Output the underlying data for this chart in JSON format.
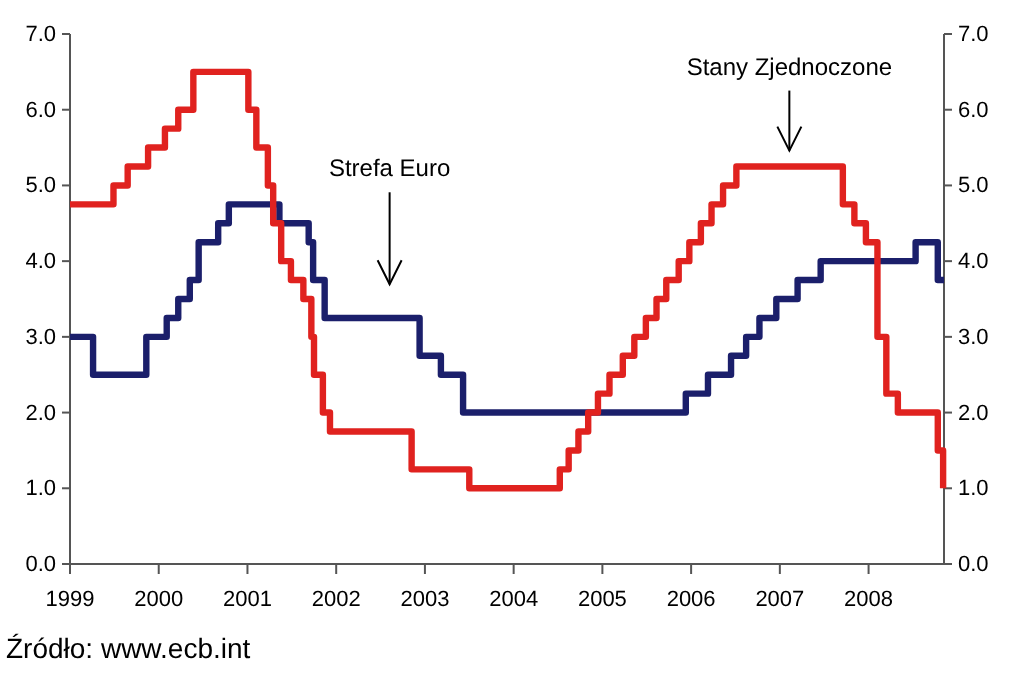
{
  "chart_data": {
    "type": "step",
    "xlim": [
      1999,
      2008.85
    ],
    "xticks": [
      1999,
      2000,
      2001,
      2002,
      2003,
      2004,
      2005,
      2006,
      2007,
      2008
    ],
    "ylim": [
      0,
      7
    ],
    "yticks": [
      {
        "value": 0,
        "label": "0.0"
      },
      {
        "value": 1,
        "label": "1.0"
      },
      {
        "value": 2,
        "label": "2.0"
      },
      {
        "value": 3,
        "label": "3.0"
      },
      {
        "value": 4,
        "label": "4.0"
      },
      {
        "value": 5,
        "label": "5.0"
      },
      {
        "value": 6,
        "label": "6.0"
      },
      {
        "value": 7,
        "label": "7.0"
      }
    ],
    "y2lim": [
      0,
      7
    ],
    "y2ticks": [
      {
        "value": 0,
        "label": "0.0"
      },
      {
        "value": 1,
        "label": "1.0"
      },
      {
        "value": 2,
        "label": "2.0"
      },
      {
        "value": 3,
        "label": "3.0"
      },
      {
        "value": 4,
        "label": "4.0"
      },
      {
        "value": 5,
        "label": "5.0"
      },
      {
        "value": 6,
        "label": "6.0"
      },
      {
        "value": 7,
        "label": "7.0"
      }
    ],
    "grid": false,
    "marker": "none",
    "line_style": "solid",
    "series": [
      {
        "color": "#1b1f6b",
        "x": [
          1999,
          1999.26,
          1999.86,
          2000.09,
          2000.22,
          2000.35,
          2000.45,
          2000.67,
          2000.79,
          2001.36,
          2001.69,
          2001.74,
          2001.87,
          2002.94,
          2003.18,
          2003.43,
          2005.94,
          2006.19,
          2006.45,
          2006.62,
          2006.77,
          2006.96,
          2007.2,
          2007.46,
          2008.53,
          2008.78,
          2008.85
        ],
        "values": [
          3.0,
          2.5,
          3.0,
          3.25,
          3.5,
          3.75,
          4.25,
          4.5,
          4.75,
          4.5,
          4.25,
          3.75,
          3.25,
          2.75,
          2.5,
          2.0,
          2.25,
          2.5,
          2.75,
          3.0,
          3.25,
          3.5,
          3.75,
          4.0,
          4.25,
          3.75,
          3.75
        ]
      },
      {
        "color": "#e0221f",
        "x": [
          1999,
          1999.49,
          1999.65,
          1999.88,
          2000.07,
          2000.22,
          2000.39,
          2001.01,
          2001.1,
          2001.23,
          2001.29,
          2001.38,
          2001.49,
          2001.63,
          2001.72,
          2001.75,
          2001.85,
          2001.93,
          2002.85,
          2003.5,
          2004.52,
          2004.62,
          2004.73,
          2004.84,
          2004.95,
          2005.08,
          2005.23,
          2005.36,
          2005.49,
          2005.61,
          2005.72,
          2005.86,
          2005.98,
          2006.11,
          2006.23,
          2006.36,
          2006.51,
          2007.71,
          2007.84,
          2007.97,
          2008.1,
          2008.2,
          2008.33,
          2008.78,
          2008.84
        ],
        "values": [
          4.75,
          5.0,
          5.25,
          5.5,
          5.75,
          6.0,
          6.5,
          6.0,
          5.5,
          5.0,
          4.5,
          4.0,
          3.75,
          3.5,
          3.0,
          2.5,
          2.0,
          1.75,
          1.25,
          1.0,
          1.25,
          1.5,
          1.75,
          2.0,
          2.25,
          2.5,
          2.75,
          3.0,
          3.25,
          3.5,
          3.75,
          4.0,
          4.25,
          4.5,
          4.75,
          5.0,
          5.25,
          4.75,
          4.5,
          4.25,
          3.0,
          2.25,
          2.0,
          1.5,
          1.0
        ]
      }
    ],
    "annotations": [
      "Strefa Euro",
      "Stany Zjednoczone",
      "Źródło: www.ecb.int"
    ]
  }
}
